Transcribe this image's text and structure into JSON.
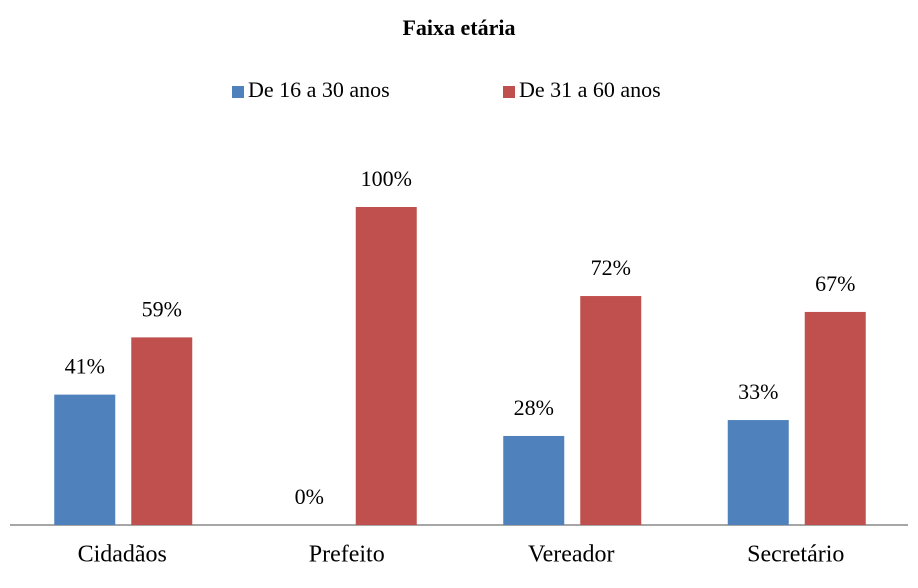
{
  "chart_data": {
    "type": "bar",
    "title": "Faixa etária",
    "categories": [
      "Cidadãos",
      "Prefeito",
      "Vereador",
      "Secretário"
    ],
    "series": [
      {
        "name": "De 16 a 30 anos",
        "color": "#4f81bd",
        "values": [
          41,
          0,
          28,
          33
        ],
        "value_labels": [
          "41%",
          "0%",
          "28%",
          "33%"
        ]
      },
      {
        "name": "De 31 a 60 anos",
        "color": "#c0504d",
        "values": [
          59,
          100,
          72,
          67
        ],
        "value_labels": [
          "59%",
          "100%",
          "72%",
          "67%"
        ]
      }
    ],
    "legend": "top"
  }
}
